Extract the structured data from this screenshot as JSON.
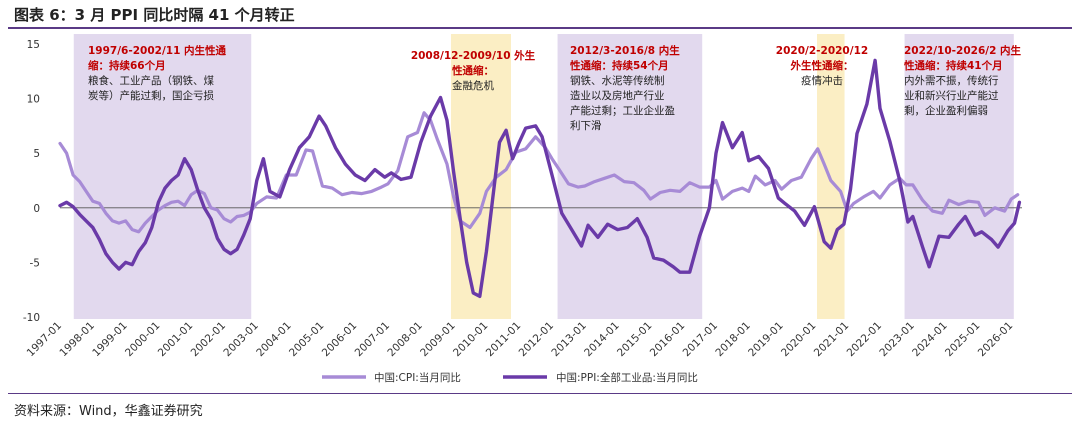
{
  "header": {
    "title": "图表 6：3 月 PPI 同比时隔 41 个月转正"
  },
  "footer": {
    "source": "资料来源：Wind，华鑫证券研究"
  },
  "chart_data": {
    "type": "line",
    "y_ticks": [
      "15",
      "10",
      "5",
      "0",
      "-5",
      "-10"
    ],
    "ylim": [
      -10,
      15
    ],
    "x_ticks": [
      "1997-01",
      "1998-01",
      "1999-01",
      "2000-01",
      "2001-01",
      "2002-01",
      "2003-01",
      "2004-01",
      "2005-01",
      "2006-01",
      "2007-01",
      "2008-01",
      "2009-01",
      "2010-01",
      "2011-01",
      "2012-01",
      "2013-01",
      "2014-01",
      "2015-01",
      "2016-01",
      "2017-01",
      "2018-01",
      "2019-01",
      "2020-01",
      "2021-01",
      "2022-01",
      "2023-01",
      "2024-01",
      "2025-01",
      "2026-01"
    ],
    "xlim": [
      1997.0,
      2026.33
    ],
    "colors": {
      "cpi": "#a78bd6",
      "ppi": "#6a3aa8",
      "purple_band": "#e2d9ee",
      "yellow_band": "#fbeec4"
    },
    "series": [
      {
        "name": "中国:CPI:当月同比",
        "points": [
          [
            1997.0,
            5.9
          ],
          [
            1997.2,
            5.0
          ],
          [
            1997.4,
            3.0
          ],
          [
            1997.6,
            2.4
          ],
          [
            1997.8,
            1.5
          ],
          [
            1998.0,
            0.6
          ],
          [
            1998.2,
            0.4
          ],
          [
            1998.4,
            -0.5
          ],
          [
            1998.6,
            -1.2
          ],
          [
            1998.8,
            -1.4
          ],
          [
            1999.0,
            -1.2
          ],
          [
            1999.2,
            -2.0
          ],
          [
            1999.4,
            -2.2
          ],
          [
            1999.6,
            -1.4
          ],
          [
            1999.8,
            -0.8
          ],
          [
            2000.0,
            -0.2
          ],
          [
            2000.2,
            0.2
          ],
          [
            2000.4,
            0.5
          ],
          [
            2000.6,
            0.6
          ],
          [
            2000.8,
            0.2
          ],
          [
            2001.0,
            1.2
          ],
          [
            2001.2,
            1.6
          ],
          [
            2001.4,
            1.3
          ],
          [
            2001.6,
            0.0
          ],
          [
            2001.8,
            -0.2
          ],
          [
            2002.0,
            -1.0
          ],
          [
            2002.2,
            -1.3
          ],
          [
            2002.4,
            -0.8
          ],
          [
            2002.6,
            -0.7
          ],
          [
            2002.8,
            -0.4
          ],
          [
            2003.0,
            0.4
          ],
          [
            2003.3,
            1.0
          ],
          [
            2003.6,
            0.9
          ],
          [
            2003.9,
            3.0
          ],
          [
            2004.2,
            3.0
          ],
          [
            2004.5,
            5.3
          ],
          [
            2004.7,
            5.2
          ],
          [
            2005.0,
            2.0
          ],
          [
            2005.3,
            1.8
          ],
          [
            2005.6,
            1.2
          ],
          [
            2005.9,
            1.4
          ],
          [
            2006.2,
            1.3
          ],
          [
            2006.5,
            1.5
          ],
          [
            2006.8,
            1.9
          ],
          [
            2007.0,
            2.2
          ],
          [
            2007.3,
            3.4
          ],
          [
            2007.6,
            6.5
          ],
          [
            2007.9,
            6.9
          ],
          [
            2008.1,
            8.7
          ],
          [
            2008.3,
            8.0
          ],
          [
            2008.5,
            6.3
          ],
          [
            2008.8,
            4.0
          ],
          [
            2009.0,
            1.0
          ],
          [
            2009.2,
            -1.2
          ],
          [
            2009.5,
            -1.8
          ],
          [
            2009.8,
            -0.5
          ],
          [
            2010.0,
            1.5
          ],
          [
            2010.3,
            2.8
          ],
          [
            2010.6,
            3.5
          ],
          [
            2010.9,
            5.1
          ],
          [
            2011.2,
            5.4
          ],
          [
            2011.5,
            6.5
          ],
          [
            2011.8,
            5.5
          ],
          [
            2012.0,
            4.5
          ],
          [
            2012.2,
            3.6
          ],
          [
            2012.5,
            2.2
          ],
          [
            2012.8,
            1.9
          ],
          [
            2013.0,
            2.0
          ],
          [
            2013.3,
            2.4
          ],
          [
            2013.6,
            2.7
          ],
          [
            2013.9,
            3.0
          ],
          [
            2014.2,
            2.4
          ],
          [
            2014.5,
            2.3
          ],
          [
            2014.8,
            1.6
          ],
          [
            2015.0,
            0.8
          ],
          [
            2015.3,
            1.4
          ],
          [
            2015.6,
            1.6
          ],
          [
            2015.9,
            1.5
          ],
          [
            2016.2,
            2.3
          ],
          [
            2016.5,
            1.9
          ],
          [
            2016.8,
            1.9
          ],
          [
            2017.0,
            2.5
          ],
          [
            2017.2,
            0.8
          ],
          [
            2017.5,
            1.5
          ],
          [
            2017.8,
            1.8
          ],
          [
            2018.0,
            1.5
          ],
          [
            2018.2,
            2.9
          ],
          [
            2018.5,
            2.1
          ],
          [
            2018.8,
            2.5
          ],
          [
            2019.0,
            1.7
          ],
          [
            2019.3,
            2.5
          ],
          [
            2019.6,
            2.8
          ],
          [
            2019.9,
            4.5
          ],
          [
            2020.1,
            5.4
          ],
          [
            2020.3,
            4.0
          ],
          [
            2020.5,
            2.5
          ],
          [
            2020.8,
            1.5
          ],
          [
            2021.0,
            -0.3
          ],
          [
            2021.2,
            0.4
          ],
          [
            2021.5,
            1.0
          ],
          [
            2021.8,
            1.5
          ],
          [
            2022.0,
            0.9
          ],
          [
            2022.3,
            2.1
          ],
          [
            2022.6,
            2.7
          ],
          [
            2022.8,
            2.1
          ],
          [
            2023.0,
            2.1
          ],
          [
            2023.3,
            0.7
          ],
          [
            2023.6,
            -0.3
          ],
          [
            2023.9,
            -0.5
          ],
          [
            2024.1,
            0.7
          ],
          [
            2024.4,
            0.3
          ],
          [
            2024.7,
            0.6
          ],
          [
            2025.0,
            0.5
          ],
          [
            2025.2,
            -0.7
          ],
          [
            2025.5,
            0.0
          ],
          [
            2025.8,
            -0.3
          ],
          [
            2026.0,
            0.8
          ],
          [
            2026.2,
            1.2
          ]
        ]
      },
      {
        "name": "中国:PPI:全部工业品:当月同比",
        "points": [
          [
            1997.0,
            0.2
          ],
          [
            1997.2,
            0.5
          ],
          [
            1997.4,
            0.1
          ],
          [
            1997.6,
            -0.6
          ],
          [
            1997.8,
            -1.2
          ],
          [
            1998.0,
            -1.8
          ],
          [
            1998.2,
            -2.9
          ],
          [
            1998.4,
            -4.2
          ],
          [
            1998.6,
            -5.0
          ],
          [
            1998.8,
            -5.6
          ],
          [
            1999.0,
            -5.0
          ],
          [
            1999.2,
            -5.2
          ],
          [
            1999.4,
            -4.0
          ],
          [
            1999.6,
            -3.2
          ],
          [
            1999.8,
            -1.8
          ],
          [
            2000.0,
            0.5
          ],
          [
            2000.2,
            1.8
          ],
          [
            2000.4,
            2.5
          ],
          [
            2000.6,
            3.0
          ],
          [
            2000.8,
            4.5
          ],
          [
            2001.0,
            3.5
          ],
          [
            2001.2,
            1.6
          ],
          [
            2001.4,
            0.0
          ],
          [
            2001.6,
            -1.0
          ],
          [
            2001.8,
            -2.8
          ],
          [
            2002.0,
            -3.8
          ],
          [
            2002.2,
            -4.2
          ],
          [
            2002.4,
            -3.8
          ],
          [
            2002.6,
            -2.5
          ],
          [
            2002.8,
            -1.0
          ],
          [
            2003.0,
            2.5
          ],
          [
            2003.2,
            4.5
          ],
          [
            2003.4,
            1.5
          ],
          [
            2003.7,
            1.0
          ],
          [
            2004.0,
            3.5
          ],
          [
            2004.3,
            5.5
          ],
          [
            2004.6,
            6.5
          ],
          [
            2004.9,
            8.4
          ],
          [
            2005.1,
            7.5
          ],
          [
            2005.4,
            5.5
          ],
          [
            2005.7,
            4.0
          ],
          [
            2006.0,
            3.0
          ],
          [
            2006.3,
            2.5
          ],
          [
            2006.6,
            3.5
          ],
          [
            2006.9,
            2.8
          ],
          [
            2007.1,
            3.2
          ],
          [
            2007.4,
            2.6
          ],
          [
            2007.7,
            2.8
          ],
          [
            2008.0,
            6.0
          ],
          [
            2008.3,
            8.4
          ],
          [
            2008.6,
            10.1
          ],
          [
            2008.8,
            8.0
          ],
          [
            2009.0,
            3.3
          ],
          [
            2009.2,
            -1.0
          ],
          [
            2009.4,
            -5.0
          ],
          [
            2009.6,
            -7.8
          ],
          [
            2009.8,
            -8.1
          ],
          [
            2010.0,
            -4.0
          ],
          [
            2010.2,
            1.0
          ],
          [
            2010.4,
            6.0
          ],
          [
            2010.6,
            7.1
          ],
          [
            2010.8,
            4.5
          ],
          [
            2011.0,
            6.0
          ],
          [
            2011.2,
            7.3
          ],
          [
            2011.5,
            7.5
          ],
          [
            2011.7,
            6.5
          ],
          [
            2012.0,
            3.0
          ],
          [
            2012.3,
            -0.5
          ],
          [
            2012.6,
            -2.0
          ],
          [
            2012.9,
            -3.5
          ],
          [
            2013.1,
            -1.6
          ],
          [
            2013.4,
            -2.7
          ],
          [
            2013.7,
            -1.5
          ],
          [
            2014.0,
            -2.0
          ],
          [
            2014.3,
            -1.8
          ],
          [
            2014.6,
            -1.0
          ],
          [
            2014.9,
            -2.7
          ],
          [
            2015.1,
            -4.6
          ],
          [
            2015.4,
            -4.8
          ],
          [
            2015.7,
            -5.4
          ],
          [
            2015.9,
            -5.9
          ],
          [
            2016.2,
            -5.9
          ],
          [
            2016.5,
            -2.6
          ],
          [
            2016.8,
            0.0
          ],
          [
            2017.0,
            5.0
          ],
          [
            2017.2,
            7.8
          ],
          [
            2017.5,
            5.5
          ],
          [
            2017.8,
            6.9
          ],
          [
            2018.0,
            4.3
          ],
          [
            2018.3,
            4.7
          ],
          [
            2018.6,
            3.6
          ],
          [
            2018.9,
            0.9
          ],
          [
            2019.1,
            0.4
          ],
          [
            2019.4,
            -0.3
          ],
          [
            2019.7,
            -1.6
          ],
          [
            2020.0,
            0.1
          ],
          [
            2020.3,
            -3.1
          ],
          [
            2020.5,
            -3.7
          ],
          [
            2020.7,
            -2.0
          ],
          [
            2020.9,
            -1.5
          ],
          [
            2021.1,
            1.7
          ],
          [
            2021.3,
            6.8
          ],
          [
            2021.6,
            9.5
          ],
          [
            2021.85,
            13.5
          ],
          [
            2022.0,
            9.1
          ],
          [
            2022.3,
            6.1
          ],
          [
            2022.6,
            2.5
          ],
          [
            2022.85,
            -1.3
          ],
          [
            2023.0,
            -0.8
          ],
          [
            2023.3,
            -3.6
          ],
          [
            2023.5,
            -5.4
          ],
          [
            2023.8,
            -2.6
          ],
          [
            2024.1,
            -2.7
          ],
          [
            2024.4,
            -1.5
          ],
          [
            2024.6,
            -0.8
          ],
          [
            2024.9,
            -2.5
          ],
          [
            2025.1,
            -2.2
          ],
          [
            2025.4,
            -2.9
          ],
          [
            2025.6,
            -3.6
          ],
          [
            2025.9,
            -2.1
          ],
          [
            2026.1,
            -1.4
          ],
          [
            2026.25,
            0.5
          ]
        ]
      }
    ],
    "shaded_periods": [
      {
        "kind": "purple",
        "range": [
          1997.42,
          2002.83
        ],
        "label_red": [
          "1997/6-2002/11 内生性通",
          "缩：持续66个月"
        ],
        "label_black": [
          "粮食、工业产品（钢铁、煤",
          "炭等）产能过剩，国企亏损"
        ]
      },
      {
        "kind": "yellow",
        "range": [
          2008.92,
          2010.75
        ],
        "label_red": [
          "2008/12-2009/10 外生",
          "性通缩："
        ],
        "label_black": [
          "金融危机"
        ]
      },
      {
        "kind": "purple",
        "range": [
          2012.17,
          2016.58
        ],
        "label_red": [
          "2012/3-2016/8 内生",
          "性通缩：持续54个月"
        ],
        "label_black": [
          "钢铁、水泥等传统制",
          "造业以及房地产行业",
          "产能过剩；工业企业盈",
          "利下滑"
        ]
      },
      {
        "kind": "yellow",
        "range": [
          2020.08,
          2020.92
        ],
        "label_red": [
          "2020/2-2020/12",
          "外生性通缩："
        ],
        "label_black": [
          "疫情冲击"
        ]
      },
      {
        "kind": "purple",
        "range": [
          2022.75,
          2026.08
        ],
        "label_red": [
          "2022/10-2026/2 内生",
          "性通缩：持续41个月"
        ],
        "label_black": [
          "内外需不振，传统行",
          "业和新兴行业产能过",
          "剩，企业盈利偏弱"
        ]
      }
    ],
    "legend": [
      {
        "label": "中国:CPI:当月同比",
        "color_key": "cpi"
      },
      {
        "label": "中国:PPI:全部工业品:当月同比",
        "color_key": "ppi"
      }
    ]
  }
}
